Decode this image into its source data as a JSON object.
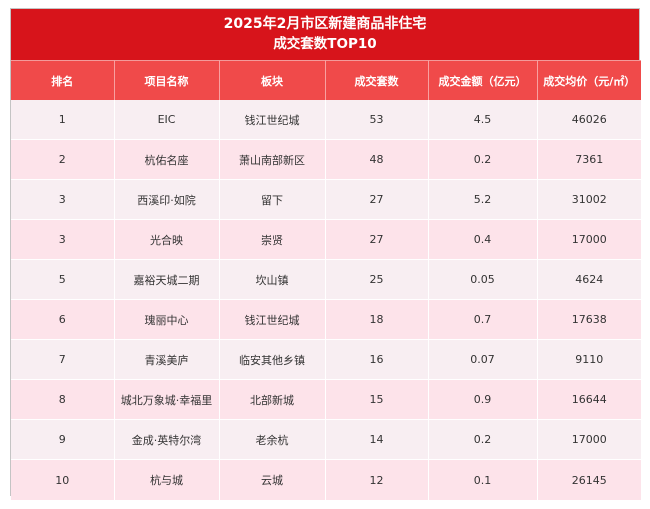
{
  "title": {
    "line1": "2025年2月市区新建商品非住宅",
    "line2": "成交套数TOP10"
  },
  "headers": [
    "排名",
    "项目名称",
    "板块",
    "成交套数",
    "成交金额（亿元）",
    "成交均价（元/㎡）"
  ],
  "rows": [
    [
      "1",
      "EIC",
      "钱江世纪城",
      "53",
      "4.5",
      "46026"
    ],
    [
      "2",
      "杭佑名座",
      "萧山南部新区",
      "48",
      "0.2",
      "7361"
    ],
    [
      "3",
      "西溪印·如院",
      "留下",
      "27",
      "5.2",
      "31002"
    ],
    [
      "3",
      "光合映",
      "崇贤",
      "27",
      "0.4",
      "17000"
    ],
    [
      "5",
      "嘉裕天城二期",
      "坎山镇",
      "25",
      "0.05",
      "4624"
    ],
    [
      "6",
      "瑰丽中心",
      "钱江世纪城",
      "18",
      "0.7",
      "17638"
    ],
    [
      "7",
      "青溪美庐",
      "临安其他乡镇",
      "16",
      "0.07",
      "9110"
    ],
    [
      "8",
      "城北万象城·幸福里",
      "北部新城",
      "15",
      "0.9",
      "16644"
    ],
    [
      "9",
      "金成·英特尔湾",
      "老余杭",
      "14",
      "0.2",
      "17000"
    ],
    [
      "10",
      "杭与城",
      "云城",
      "12",
      "0.1",
      "26145"
    ]
  ],
  "colors": {
    "title_bg": "#d7141b",
    "header_bg": "#f04a4a",
    "row_odd": "#f8eef2",
    "row_even": "#fde3ea"
  }
}
